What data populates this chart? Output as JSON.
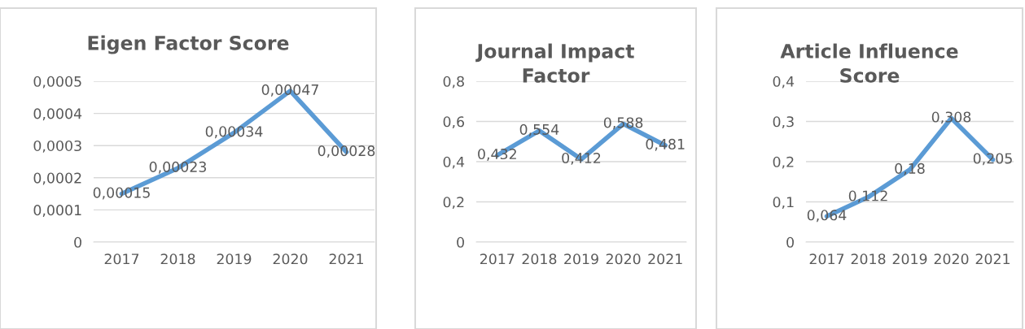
{
  "chart_data": [
    {
      "type": "line",
      "title": "Eigen Factor Score",
      "categories": [
        "2017",
        "2018",
        "2019",
        "2020",
        "2021"
      ],
      "series": [
        {
          "color": "#5b9bd5",
          "values": [
            0.00015,
            0.00023,
            0.00034,
            0.00047,
            0.00028
          ],
          "value_labels": [
            "0,00015",
            "0,00023",
            "0,00034",
            "0,00047",
            "0,00028"
          ]
        }
      ],
      "ylim": [
        0,
        0.0005
      ],
      "yticks": [
        0,
        {
          "value": 0.0001,
          "label": "0,0001"
        },
        {
          "value": 0.0002,
          "label": "0,0002"
        },
        {
          "value": 0.0003,
          "label": "0,0003"
        },
        {
          "value": 0.0004,
          "label": "0,0004"
        },
        {
          "value": 0.0005,
          "label": "0,0005"
        }
      ],
      "grid": "y",
      "legend": false,
      "marker": "none",
      "line_style": "solid"
    },
    {
      "type": "line",
      "title": "Journal Impact\nFactor",
      "categories": [
        "2017",
        "2018",
        "2019",
        "2020",
        "2021"
      ],
      "series": [
        {
          "color": "#5b9bd5",
          "values": [
            0.432,
            0.554,
            0.412,
            0.588,
            0.481
          ],
          "value_labels": [
            "0,432",
            "0,554",
            "0,412",
            "0,588",
            "0,481"
          ]
        }
      ],
      "ylim": [
        0,
        0.8
      ],
      "yticks": [
        0,
        {
          "value": 0.2,
          "label": "0,2"
        },
        {
          "value": 0.4,
          "label": "0,4"
        },
        {
          "value": 0.6,
          "label": "0,6"
        },
        {
          "value": 0.8,
          "label": "0,8"
        }
      ],
      "grid": "y",
      "legend": false,
      "marker": "none",
      "line_style": "solid"
    },
    {
      "type": "line",
      "title": "Article Influence\nScore",
      "categories": [
        "2017",
        "2018",
        "2019",
        "2020",
        "2021"
      ],
      "series": [
        {
          "color": "#5b9bd5",
          "values": [
            0.064,
            0.112,
            0.18,
            0.308,
            0.205
          ],
          "value_labels": [
            "0,064",
            "0,112",
            "0,18",
            "0,308",
            "0,205"
          ]
        }
      ],
      "ylim": [
        0,
        0.4
      ],
      "yticks": [
        0,
        {
          "value": 0.1,
          "label": "0,1"
        },
        {
          "value": 0.2,
          "label": "0,2"
        },
        {
          "value": 0.3,
          "label": "0,3"
        },
        {
          "value": 0.4,
          "label": "0,4"
        }
      ],
      "grid": "y",
      "legend": false,
      "marker": "none",
      "line_style": "solid"
    }
  ]
}
